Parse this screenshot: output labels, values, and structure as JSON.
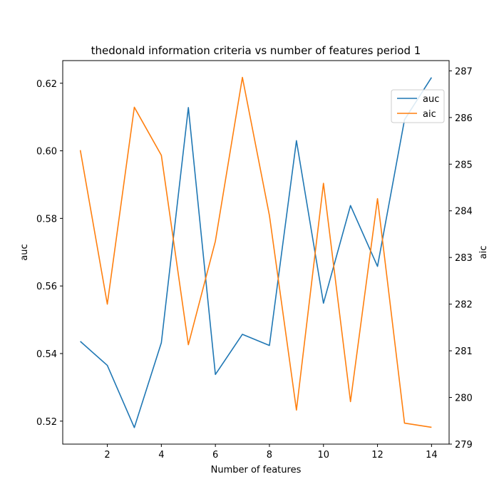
{
  "chart_data": {
    "type": "line",
    "title": "thedonald information criteria vs number of features period 1",
    "xlabel": "Number of features",
    "ylabel_left": "auc",
    "ylabel_right": "aic",
    "x": [
      1,
      2,
      3,
      4,
      5,
      6,
      7,
      8,
      9,
      10,
      11,
      12,
      13,
      14
    ],
    "xlim": [
      0.35,
      14.65
    ],
    "xticks": [
      2,
      4,
      6,
      8,
      10,
      12,
      14
    ],
    "ylim_left": [
      0.5132,
      0.6267
    ],
    "yticks_left": [
      "0.52",
      "0.54",
      "0.56",
      "0.58",
      "0.60",
      "0.62"
    ],
    "ylim_right": [
      279.0,
      287.22
    ],
    "yticks_right": [
      "279",
      "280",
      "281",
      "282",
      "283",
      "284",
      "285",
      "286",
      "287"
    ],
    "series": [
      {
        "name": "auc",
        "axis": "left",
        "color": "#1f77b4",
        "values": [
          0.5436,
          0.5365,
          0.5181,
          0.5432,
          0.6128,
          0.5338,
          0.5457,
          0.5424,
          0.603,
          0.5549,
          0.5838,
          0.5658,
          0.6092,
          0.6217
        ]
      },
      {
        "name": "aic",
        "axis": "right",
        "color": "#ff7f0e",
        "values": [
          285.3,
          282.0,
          286.22,
          285.19,
          281.13,
          283.35,
          286.86,
          283.9,
          279.73,
          284.59,
          279.91,
          284.26,
          279.45,
          279.36
        ]
      }
    ],
    "legend_position": "upper-right",
    "grid": false
  }
}
